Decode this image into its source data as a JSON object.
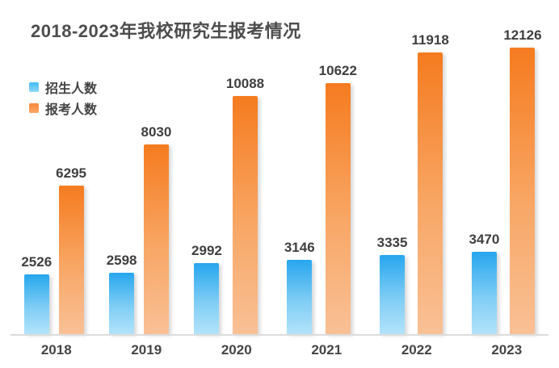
{
  "title": "2018-2023年我校研究生报考情况",
  "colors": {
    "background": "#ffffff",
    "title_text": "#4d4d4d",
    "value_label_text": "#3f3f3f",
    "axis_label_text": "#454545",
    "axis_line": "#dcdcdc",
    "enrollment_bar_top": "#27a6ee",
    "enrollment_bar_bottom": "#b2e3fa",
    "applicants_bar_top": "#f57b1f",
    "applicants_bar_bottom": "#f9c096"
  },
  "legend": {
    "items": [
      {
        "label": "招生人数",
        "color": "#45bcf3"
      },
      {
        "label": "报考人数",
        "color": "#f5873a"
      }
    ]
  },
  "chart_data": {
    "type": "bar",
    "title": "2018-2023年我校研究生报考情况",
    "categories": [
      "2018",
      "2019",
      "2020",
      "2021",
      "2022",
      "2023"
    ],
    "series": [
      {
        "name": "招生人数",
        "values": [
          2526,
          2598,
          2992,
          3146,
          3335,
          3470
        ]
      },
      {
        "name": "报考人数",
        "values": [
          6295,
          8030,
          10088,
          10622,
          11918,
          12126
        ]
      }
    ],
    "ylim": [
      0,
      12126
    ],
    "xlabel": "",
    "ylabel": "",
    "grid": false,
    "data_labels": true,
    "legend_position": "upper-left"
  }
}
